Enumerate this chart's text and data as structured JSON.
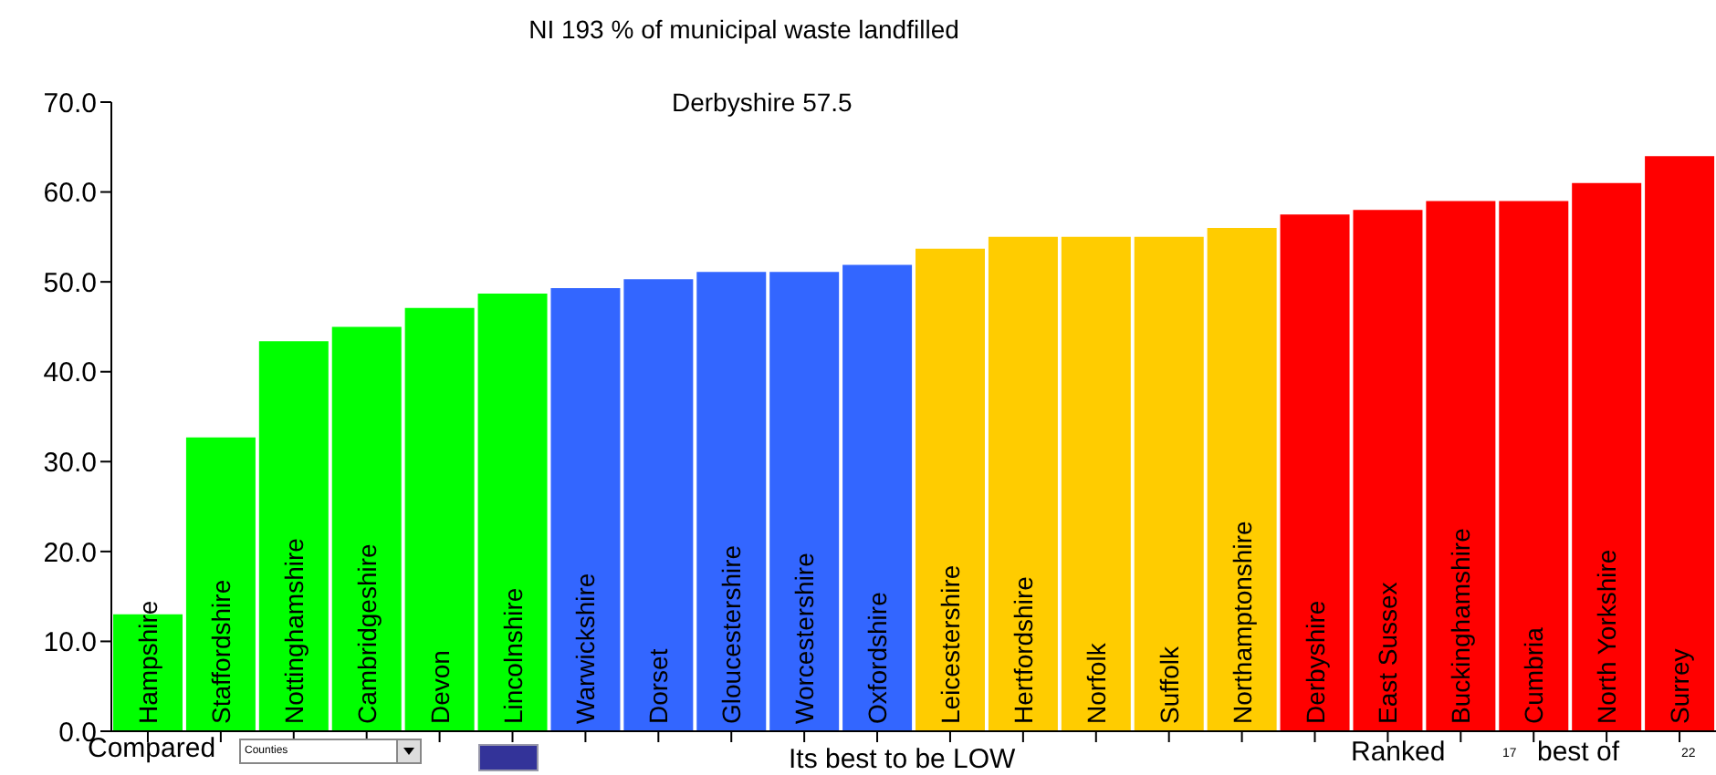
{
  "chart_data": {
    "type": "bar",
    "title": "NI 193 % of municipal waste landfilled",
    "categories": [
      "Hampshire",
      "Staffordshire",
      "Nottinghamshire",
      "Cambridgeshire",
      "Devon",
      "Lincolnshire",
      "Warwickshire",
      "Dorset",
      "Gloucestershire",
      "Worcestershire",
      "Oxfordshire",
      "Leicestershire",
      "Hertfordshire",
      "Norfolk",
      "Suffolk",
      "Northamptonshire",
      "Derbyshire",
      "East Sussex",
      "Buckinghamshire",
      "Cumbria",
      "North Yorkshire",
      "Surrey"
    ],
    "values": [
      13.0,
      32.7,
      43.4,
      45.0,
      47.1,
      48.7,
      49.3,
      50.3,
      51.1,
      51.1,
      51.9,
      53.7,
      55.0,
      55.0,
      55.0,
      56.0,
      57.5,
      58.0,
      59.0,
      59.0,
      61.0,
      64.0
    ],
    "colors": [
      "#00ff00",
      "#00ff00",
      "#00ff00",
      "#00ff00",
      "#00ff00",
      "#00ff00",
      "#3366ff",
      "#3366ff",
      "#3366ff",
      "#3366ff",
      "#3366ff",
      "#ffcc00",
      "#ffcc00",
      "#ffcc00",
      "#ffcc00",
      "#ffcc00",
      "#ff0000",
      "#ff0000",
      "#ff0000",
      "#ff0000",
      "#ff0000",
      "#ff0000"
    ],
    "ylim": [
      0,
      70
    ],
    "yticks": [
      {
        "value": 0,
        "label": "0.0"
      },
      {
        "value": 10,
        "label": "10.0"
      },
      {
        "value": 20,
        "label": "20.0"
      },
      {
        "value": 30,
        "label": "30.0"
      },
      {
        "value": 40,
        "label": "40.0"
      },
      {
        "value": 50,
        "label": "50.0"
      },
      {
        "value": 60,
        "label": "60.0"
      },
      {
        "value": 70,
        "label": "70.0"
      }
    ],
    "annotations": [
      "Derbyshire     57.5",
      "Compared",
      "Counties",
      "Its best to be LOW",
      "Ranked",
      "17",
      "best of",
      "22"
    ],
    "grid": false,
    "legend": false
  }
}
